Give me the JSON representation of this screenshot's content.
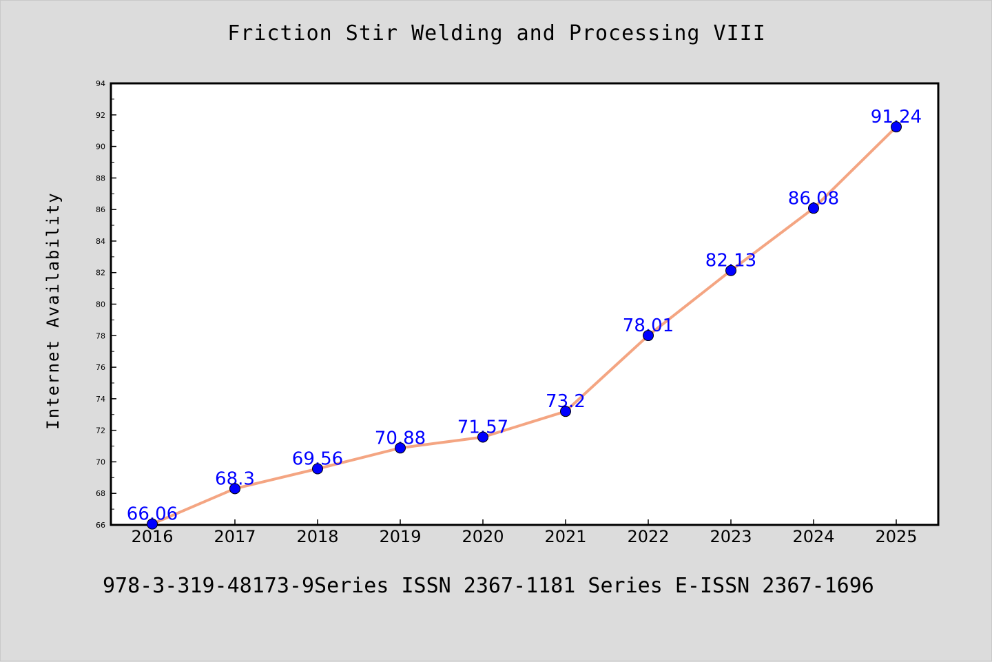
{
  "title": "Friction Stir Welding and Processing VIII",
  "footer": "978-3-319-48173-9Series ISSN 2367-1181 Series E-ISSN 2367-1696",
  "chart_data": {
    "type": "line",
    "title": "Friction Stir Welding and Processing VIII",
    "xlabel": "",
    "ylabel": "Internet Availability",
    "categories": [
      "2016",
      "2017",
      "2018",
      "2019",
      "2020",
      "2021",
      "2022",
      "2023",
      "2024",
      "2025"
    ],
    "series": [
      {
        "values": [
          66.06,
          68.3,
          69.56,
          70.88,
          71.57,
          73.2,
          78.01,
          82.13,
          86.08,
          91.24
        ],
        "labels": [
          "66.06",
          "68.3",
          "69.56",
          "70.88",
          "71.57",
          "73.2",
          "78.01",
          "82.13",
          "86.08",
          "91.24"
        ],
        "line_color": "#f4a582",
        "marker_color": "#0000ff"
      }
    ],
    "ylim": [
      66,
      94
    ],
    "yticks": [
      "66",
      "68",
      "70",
      "72",
      "74",
      "76",
      "78",
      "80",
      "82",
      "84",
      "86",
      "88",
      "90",
      "92",
      "94"
    ],
    "grid": false,
    "legend": "none",
    "colors": {
      "background": "#dcdcdc",
      "plot_background": "#ffffff",
      "label_color": "#0000ff"
    }
  }
}
